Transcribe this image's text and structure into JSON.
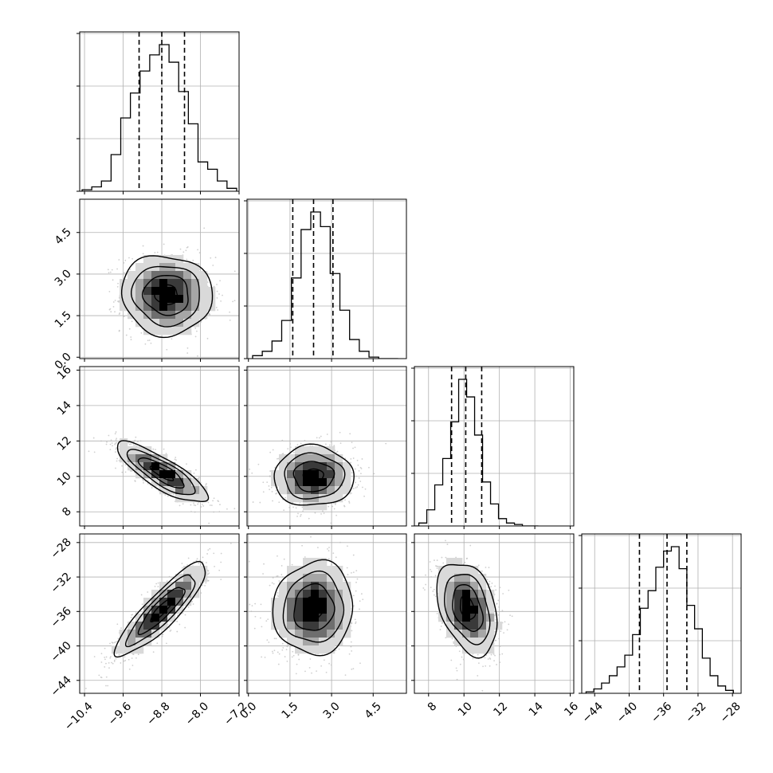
{
  "chart_data": {
    "type": "corner",
    "grid": true,
    "parameters": [
      {
        "range": [
          -10.5,
          -7.2
        ],
        "ticks": [
          -10.4,
          -9.6,
          -8.8,
          -8.0,
          -7.2
        ],
        "tick_labels": [
          "−10.4",
          "−9.6",
          "−8.8",
          "−8.0",
          "−7.2"
        ],
        "quantiles": [
          -9.27,
          -8.8,
          -8.33
        ],
        "median": -8.8,
        "sigma": 0.47,
        "histogram": {
          "bin_edges": [
            -10.45,
            -10.25,
            -10.05,
            -9.85,
            -9.65,
            -9.45,
            -9.25,
            -9.05,
            -8.85,
            -8.65,
            -8.45,
            -8.25,
            -8.05,
            -7.85,
            -7.65,
            -7.45,
            -7.25
          ],
          "counts": [
            0.01,
            0.03,
            0.07,
            0.25,
            0.5,
            0.67,
            0.82,
            0.93,
            1.0,
            0.88,
            0.68,
            0.46,
            0.2,
            0.15,
            0.07,
            0.02
          ]
        }
      },
      {
        "range": [
          -0.05,
          5.7
        ],
        "ticks": [
          0.0,
          1.5,
          3.0,
          4.5
        ],
        "tick_labels": [
          "0.0",
          "1.5",
          "3.0",
          "4.5"
        ],
        "quantiles": [
          1.6,
          2.35,
          3.05
        ],
        "median": 2.35,
        "sigma": 0.72,
        "histogram": {
          "bin_edges": [
            0.15,
            0.5,
            0.85,
            1.2,
            1.55,
            1.9,
            2.25,
            2.6,
            2.95,
            3.3,
            3.65,
            4.0,
            4.35,
            4.7,
            5.05,
            5.4
          ],
          "counts": [
            0.02,
            0.05,
            0.12,
            0.26,
            0.55,
            0.88,
            1.0,
            0.9,
            0.58,
            0.33,
            0.13,
            0.05,
            0.01,
            0.0,
            0.0
          ]
        }
      },
      {
        "range": [
          7.2,
          16.2
        ],
        "ticks": [
          8,
          10,
          12,
          14,
          16
        ],
        "tick_labels": [
          "8",
          "10",
          "12",
          "14",
          "16"
        ],
        "quantiles": [
          9.3,
          10.1,
          11.0
        ],
        "median": 10.1,
        "sigma": 0.85,
        "histogram": {
          "bin_edges": [
            7.0,
            7.45,
            7.9,
            8.35,
            8.8,
            9.25,
            9.7,
            10.15,
            10.6,
            11.05,
            11.5,
            11.95,
            12.4,
            12.85,
            13.3,
            13.75,
            14.2
          ],
          "counts": [
            0.0,
            0.02,
            0.11,
            0.28,
            0.46,
            0.71,
            1.0,
            0.88,
            0.62,
            0.3,
            0.15,
            0.05,
            0.02,
            0.01,
            0.0,
            0.0
          ]
        }
      },
      {
        "range": [
          -45.5,
          -27.0
        ],
        "ticks": [
          -44,
          -40,
          -36,
          -32,
          -28
        ],
        "tick_labels": [
          "−44",
          "−40",
          "−36",
          "−32",
          "−28"
        ],
        "quantiles": [
          -38.8,
          -35.6,
          -33.3
        ],
        "median": -35.6,
        "sigma": 2.7,
        "histogram": {
          "bin_edges": [
            -45.0,
            -44.1,
            -43.2,
            -42.3,
            -41.4,
            -40.5,
            -39.6,
            -38.7,
            -37.8,
            -36.9,
            -36.0,
            -35.1,
            -34.2,
            -33.3,
            -32.4,
            -31.5,
            -30.6,
            -29.7,
            -28.8,
            -27.9
          ],
          "counts": [
            0.01,
            0.03,
            0.07,
            0.12,
            0.18,
            0.26,
            0.4,
            0.58,
            0.7,
            0.86,
            0.97,
            1.0,
            0.85,
            0.6,
            0.44,
            0.24,
            0.12,
            0.05,
            0.02
          ]
        }
      }
    ],
    "pairs": [
      {
        "row": 1,
        "col": 0,
        "center": [
          -8.7,
          2.25
        ],
        "correlation": -0.05
      },
      {
        "row": 2,
        "col": 0,
        "center": [
          -8.8,
          10.2
        ],
        "correlation": -0.82
      },
      {
        "row": 2,
        "col": 1,
        "center": [
          2.35,
          10.0
        ],
        "correlation": 0.0
      },
      {
        "row": 3,
        "col": 0,
        "center": [
          -8.8,
          -35.8
        ],
        "correlation": 0.88
      },
      {
        "row": 3,
        "col": 1,
        "center": [
          2.35,
          -35.6
        ],
        "correlation": 0.05
      },
      {
        "row": 3,
        "col": 2,
        "center": [
          10.2,
          -35.6
        ],
        "correlation": -0.35
      }
    ],
    "contour_levels_sigma": [
      0.5,
      1.0,
      1.5,
      2.0
    ],
    "contour_color": "#000000",
    "density_colormap": [
      "#ffffff",
      "#d9d9d9",
      "#a6a6a6",
      "#6e6e6e",
      "#3a3a3a",
      "#000000"
    ],
    "scatter_color": "#bbbbbb"
  }
}
